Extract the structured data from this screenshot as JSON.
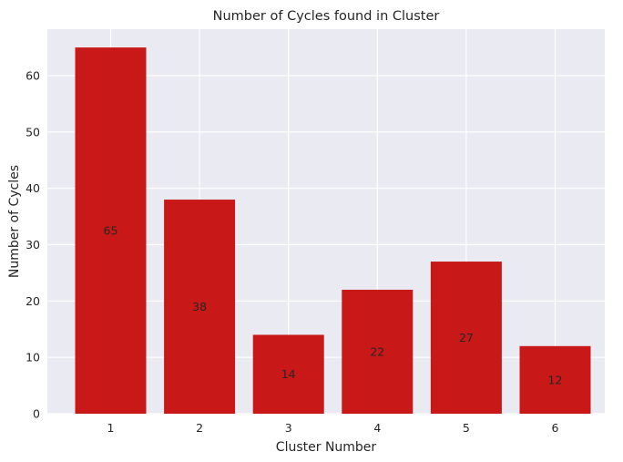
{
  "chart_data": {
    "type": "bar",
    "title": "Number of Cycles found in Cluster",
    "xlabel": "Cluster Number",
    "ylabel": "Number of Cycles",
    "categories": [
      "1",
      "2",
      "3",
      "4",
      "5",
      "6"
    ],
    "values": [
      65,
      38,
      14,
      22,
      27,
      12
    ],
    "data_labels": [
      "65",
      "38",
      "14",
      "22",
      "27",
      "12"
    ],
    "yticks": [
      0,
      10,
      20,
      30,
      40,
      50,
      60
    ],
    "ylim": [
      0,
      68.25
    ],
    "grid": true,
    "background_color": "#EAEAF2",
    "grid_color": "#FFFFFF",
    "bar_color": "#C81818"
  }
}
